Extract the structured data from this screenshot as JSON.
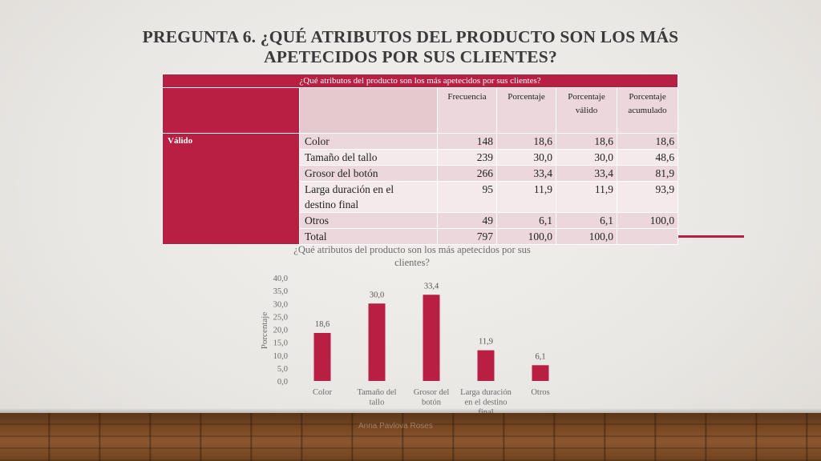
{
  "slide": {
    "title_line1": "PREGUNTA 6. ¿QUÉ ATRIBUTOS DEL PRODUCTO SON LOS MÁS",
    "title_line2": "APETECIDOS POR SUS CLIENTES?",
    "accent_color": "#b81f43"
  },
  "table": {
    "caption": "¿Qué atributos del producto son los más apetecidos por sus clientes?",
    "headers": {
      "frecuencia": "Frecuencia",
      "porcentaje": "Porcentaje",
      "porcentaje_valido_1": "Porcentaje",
      "porcentaje_valido_2": "válido",
      "porcentaje_acum_1": "Porcentaje",
      "porcentaje_acum_2": "acumulado"
    },
    "group_label": "Válido",
    "rows": [
      {
        "label": "Color",
        "frecuencia": "148",
        "porcentaje": "18,6",
        "valido": "18,6",
        "acumulado": "18,6"
      },
      {
        "label": "Tamaño del tallo",
        "frecuencia": "239",
        "porcentaje": "30,0",
        "valido": "30,0",
        "acumulado": "48,6"
      },
      {
        "label": "Grosor del botón",
        "frecuencia": "266",
        "porcentaje": "33,4",
        "valido": "33,4",
        "acumulado": "81,9"
      },
      {
        "label_line1": "Larga duración en el",
        "label_line2": "destino final",
        "frecuencia": "95",
        "porcentaje": "11,9",
        "valido": "11,9",
        "acumulado": "93,9"
      },
      {
        "label": "Otros",
        "frecuencia": "49",
        "porcentaje": "6,1",
        "valido": "6,1",
        "acumulado": "100,0"
      },
      {
        "label": "Total",
        "frecuencia": "797",
        "porcentaje": "100,0",
        "valido": "100,0",
        "acumulado": ""
      }
    ]
  },
  "chart_data": {
    "type": "bar",
    "title_line1": "¿Qué atributos del producto son los más apetecidos por sus",
    "title_line2": "clientes?",
    "ylabel": "Porcentaje",
    "categories": [
      [
        "Color"
      ],
      [
        "Tamaño del",
        "tallo"
      ],
      [
        "Grosor del",
        "botón"
      ],
      [
        "Larga duración",
        "en el destino",
        "final"
      ],
      [
        "Otros"
      ]
    ],
    "values": [
      18.6,
      30.0,
      33.4,
      11.9,
      6.1
    ],
    "value_labels": [
      "18,6",
      "30,0",
      "33,4",
      "11,9",
      "6,1"
    ],
    "yticks": [
      "0,0",
      "5,0",
      "10,0",
      "15,0",
      "20,0",
      "25,0",
      "30,0",
      "35,0",
      "40,0"
    ],
    "ylim": [
      0,
      40
    ],
    "bar_color": "#b81f43",
    "grid": false,
    "legend": "none"
  },
  "footer": {
    "watermark": "Anna Pavlova Roses"
  }
}
